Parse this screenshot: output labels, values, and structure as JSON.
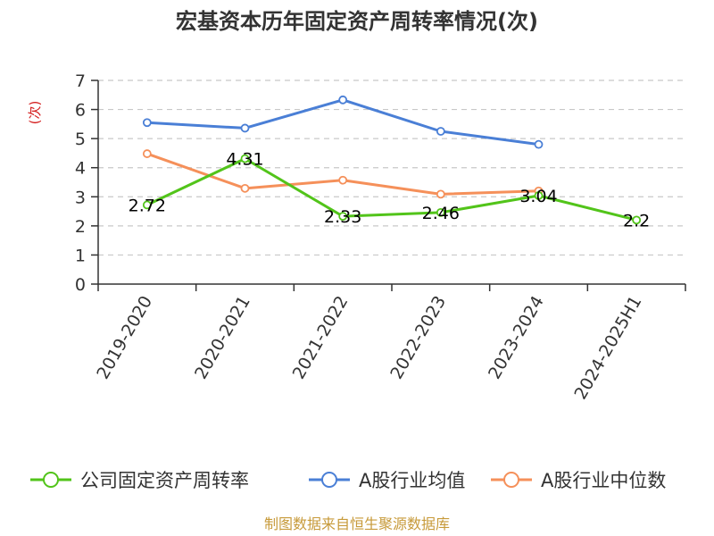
{
  "chart_data": {
    "type": "line",
    "title": "宏基资本历年固定资产周转率情况(次)",
    "ylabel": "(次)",
    "xlabel": "",
    "categories": [
      "2019-2020",
      "2020-2021",
      "2021-2022",
      "2022-2023",
      "2023-2024",
      "2024-2025H1"
    ],
    "ylim": [
      0,
      7
    ],
    "yticks": [
      0,
      1,
      2,
      3,
      4,
      5,
      6,
      7
    ],
    "grid": "horizontal-dashed",
    "legend_position": "bottom",
    "series": [
      {
        "name": "公司固定资产周转率",
        "values": [
          2.72,
          4.31,
          2.33,
          2.46,
          3.04,
          2.2
        ],
        "data_labels": [
          "2.72",
          "4.31",
          "2.33",
          "2.46",
          "3.04",
          "2.2"
        ],
        "color": "#52c41a"
      },
      {
        "name": "A股行业均值",
        "values": [
          5.55,
          5.36,
          6.33,
          5.25,
          4.8,
          null
        ],
        "color": "#4a7fd6"
      },
      {
        "name": "A股行业中位数",
        "values": [
          4.48,
          3.29,
          3.57,
          3.09,
          3.2,
          null
        ],
        "color": "#f5905a"
      }
    ]
  },
  "footer": {
    "source_text": "制图数据来自恒生聚源数据库",
    "color": "#c79a3a"
  },
  "colors": {
    "ylabel": "#d42020",
    "axis": "#333333",
    "grid": "#c8c8c8"
  }
}
